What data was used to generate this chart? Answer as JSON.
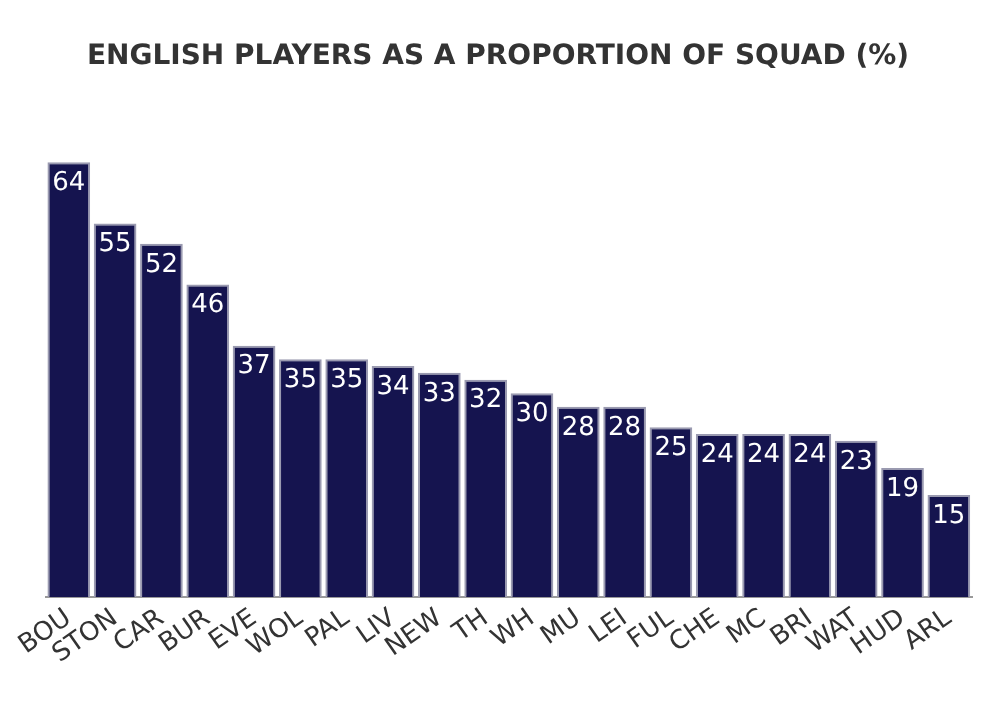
{
  "chart_data": {
    "type": "bar",
    "title": "ENGLISH PLAYERS AS A PROPORTION OF SQUAD (%)",
    "categories": [
      "BOU",
      "STON",
      "CAR",
      "BUR",
      "EVE",
      "WOL",
      "PAL",
      "LIV",
      "NEW",
      "TH",
      "WH",
      "MU",
      "LEI",
      "FUL",
      "CHE",
      "MC",
      "BRI",
      "WAT",
      "HUD",
      "ARL"
    ],
    "values": [
      64,
      55,
      52,
      46,
      37,
      35,
      35,
      34,
      33,
      32,
      30,
      28,
      28,
      25,
      24,
      24,
      24,
      23,
      19,
      15
    ],
    "color": "#15144f",
    "data_labels": true,
    "grid": false,
    "legend": false
  }
}
